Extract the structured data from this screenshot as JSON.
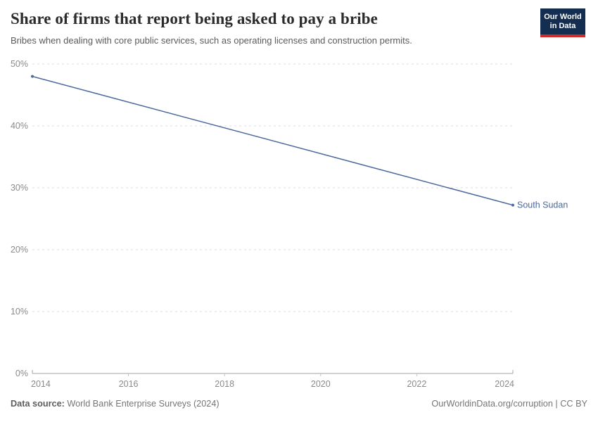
{
  "header": {
    "title": "Share of firms that report being asked to pay a bribe",
    "subtitle": "Bribes when dealing with core public services, such as operating licenses and construction permits.",
    "logo": {
      "line1": "Our World",
      "line2": "in Data",
      "bg_color": "#132e51",
      "accent_color": "#cf2d27"
    }
  },
  "chart_data": {
    "type": "line",
    "title": "Share of firms that report being asked to pay a bribe",
    "xlabel": "",
    "ylabel": "",
    "xlim": [
      2014,
      2024
    ],
    "ylim": [
      0,
      50
    ],
    "grid": "horizontal-dashed",
    "legend_position": "end-of-line-label",
    "x_ticks": [
      {
        "value": 2014,
        "label": "2014"
      },
      {
        "value": 2016,
        "label": "2016"
      },
      {
        "value": 2018,
        "label": "2018"
      },
      {
        "value": 2020,
        "label": "2020"
      },
      {
        "value": 2022,
        "label": "2022"
      },
      {
        "value": 2024,
        "label": "2024"
      }
    ],
    "y_ticks": [
      {
        "value": 0,
        "label": "0%"
      },
      {
        "value": 10,
        "label": "10%"
      },
      {
        "value": 20,
        "label": "20%"
      },
      {
        "value": 30,
        "label": "30%"
      },
      {
        "value": 40,
        "label": "40%"
      },
      {
        "value": 50,
        "label": "50%"
      }
    ],
    "series": [
      {
        "name": "South Sudan",
        "color": "#4c6a9c",
        "points": [
          {
            "x": 2014,
            "y": 48
          },
          {
            "x": 2024,
            "y": 27.2
          }
        ]
      }
    ]
  },
  "colors": {
    "gridline": "#dcdcdc",
    "axis": "#a3a3a3",
    "tick_label": "#8a8a8a"
  },
  "footer": {
    "source_label": "Data source:",
    "source_text": " World Bank Enterprise Surveys (2024)",
    "credit": "OurWorldinData.org/corruption | CC BY"
  }
}
